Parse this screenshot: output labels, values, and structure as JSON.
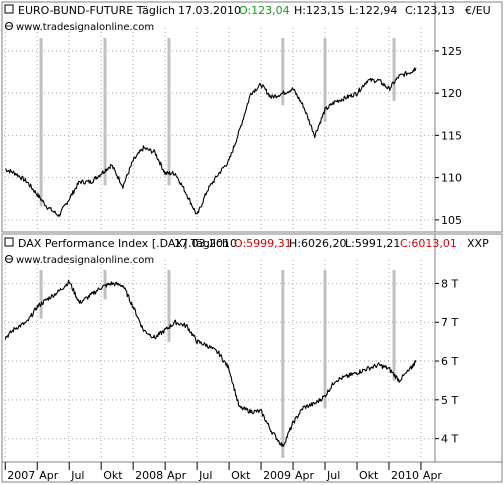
{
  "colors": {
    "open": "#1a9a1a",
    "close_down": "#e00000",
    "price": "#000000",
    "marker": "#c0c0c0",
    "grid": "#a8a8a8"
  },
  "icons": {
    "panel_icon": "checkbox-square-icon",
    "watermark_icon": "globe-icon"
  },
  "chart_data": [
    {
      "type": "line",
      "title": "EURO-BUND-FUTURE Täglich",
      "date": "17.03.2010",
      "open_label": "O:123,04",
      "high_label": "H:123,15",
      "low_label": "L:122,94",
      "close_label": "C:123,13",
      "watermark": "www.tradesignalonline.com",
      "unit_label": "€/EU",
      "ylim": [
        103.8,
        127.0
      ],
      "y_ticks": [
        105,
        110,
        115,
        120,
        125
      ],
      "y_tick_labels": [
        "105",
        "110",
        "115",
        "120",
        "125"
      ],
      "grid": true,
      "series": [
        {
          "x": [
            2007.0,
            2007.08,
            2007.17,
            2007.25,
            2007.33,
            2007.42,
            2007.5,
            2007.58,
            2007.67,
            2007.75,
            2007.83,
            2007.92,
            2008.0,
            2008.08,
            2008.17,
            2008.25,
            2008.33,
            2008.42,
            2008.5,
            2008.58,
            2008.67,
            2008.75,
            2008.83,
            2008.92,
            2009.0,
            2009.08,
            2009.17,
            2009.25,
            2009.33,
            2009.42,
            2009.5,
            2009.58,
            2009.67,
            2009.75,
            2009.83,
            2009.92,
            2010.0,
            2010.08,
            2010.17,
            2010.21
          ],
          "values": [
            111.0,
            110.5,
            109.5,
            108.0,
            106.5,
            105.5,
            107.5,
            109.5,
            109.5,
            110.5,
            111.5,
            109.0,
            112.0,
            113.5,
            113.0,
            110.5,
            110.5,
            108.0,
            105.5,
            108.5,
            110.5,
            112.0,
            115.5,
            120.0,
            121.0,
            119.5,
            120.0,
            120.5,
            118.5,
            115.0,
            118.0,
            119.0,
            119.5,
            120.0,
            121.5,
            121.5,
            120.5,
            122.0,
            122.5,
            123.0
          ]
        }
      ]
    },
    {
      "type": "line",
      "title": "DAX Performance Index [.DAX] Täglich",
      "date": "17.03.2010",
      "open_label": "O:5999,31",
      "high_label": "H:6026,20",
      "low_label": "L:5991,21",
      "close_label": "C:6013,01",
      "watermark": "www.tradesignalonline.com",
      "unit_label": "XXP",
      "ylim": [
        3500,
        8450
      ],
      "y_ticks": [
        4000,
        5000,
        6000,
        7000,
        8000
      ],
      "y_tick_labels": [
        "4 T",
        "5 T",
        "6 T",
        "7 T",
        "8 T"
      ],
      "grid": true,
      "series": [
        {
          "x": [
            2007.0,
            2007.08,
            2007.17,
            2007.25,
            2007.33,
            2007.42,
            2007.5,
            2007.58,
            2007.67,
            2007.75,
            2007.83,
            2007.92,
            2008.0,
            2008.08,
            2008.17,
            2008.25,
            2008.33,
            2008.42,
            2008.5,
            2008.58,
            2008.67,
            2008.75,
            2008.83,
            2008.92,
            2009.0,
            2009.08,
            2009.17,
            2009.25,
            2009.33,
            2009.42,
            2009.5,
            2009.58,
            2009.67,
            2009.75,
            2009.83,
            2009.92,
            2010.0,
            2010.08,
            2010.17,
            2010.21
          ],
          "values": [
            6600,
            6850,
            7000,
            7400,
            7600,
            7800,
            8050,
            7500,
            7700,
            7900,
            8000,
            7950,
            7400,
            6800,
            6600,
            6800,
            7000,
            6900,
            6500,
            6400,
            6200,
            5800,
            4800,
            4700,
            4700,
            4200,
            3800,
            4400,
            4800,
            4900,
            5100,
            5500,
            5600,
            5700,
            5800,
            5900,
            5800,
            5500,
            5800,
            6000
          ]
        }
      ]
    }
  ],
  "marker_dates": [
    2007.28,
    2007.78,
    2008.28,
    2009.17,
    2009.5,
    2010.04
  ],
  "x_axis": {
    "ticks": [
      2007.0,
      2007.25,
      2007.5,
      2007.75,
      2008.0,
      2008.25,
      2008.5,
      2008.75,
      2009.0,
      2009.25,
      2009.5,
      2009.75,
      2010.0,
      2010.25
    ],
    "labels": [
      "2007",
      "Apr",
      "Jul",
      "Okt",
      "2008",
      "Apr",
      "Jul",
      "Okt",
      "2009",
      "Apr",
      "Jul",
      "Okt",
      "2010",
      "Apr"
    ]
  }
}
